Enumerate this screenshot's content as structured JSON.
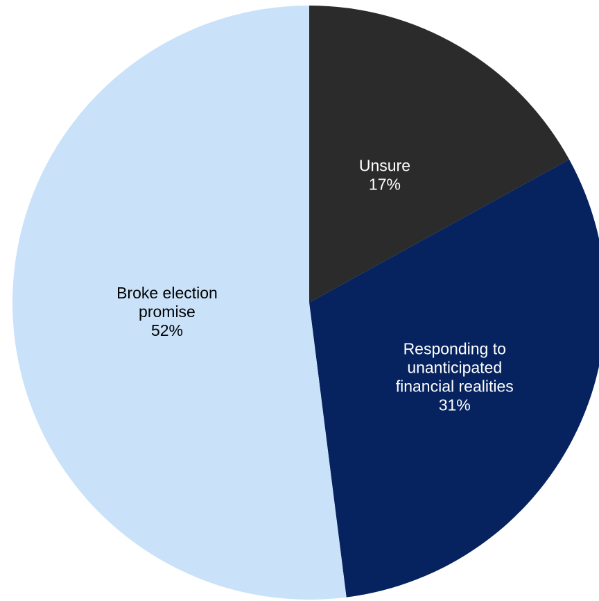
{
  "chart_data": {
    "type": "pie",
    "title": "",
    "start_angle_deg": 0,
    "direction": "clockwise",
    "slices": [
      {
        "label_lines": [
          "Unsure"
        ],
        "value": 17,
        "value_label": "17%",
        "color": "#2b2b2b",
        "text_color": "#ffffff"
      },
      {
        "label_lines": [
          "Responding to",
          "unanticipated",
          "financial realities"
        ],
        "value": 31,
        "value_label": "31%",
        "color": "#06235f",
        "text_color": "#ffffff"
      },
      {
        "label_lines": [
          "Broke election",
          "promise"
        ],
        "value": 52,
        "value_label": "52%",
        "color": "#c9e2f9",
        "text_color": "#000000"
      }
    ]
  }
}
